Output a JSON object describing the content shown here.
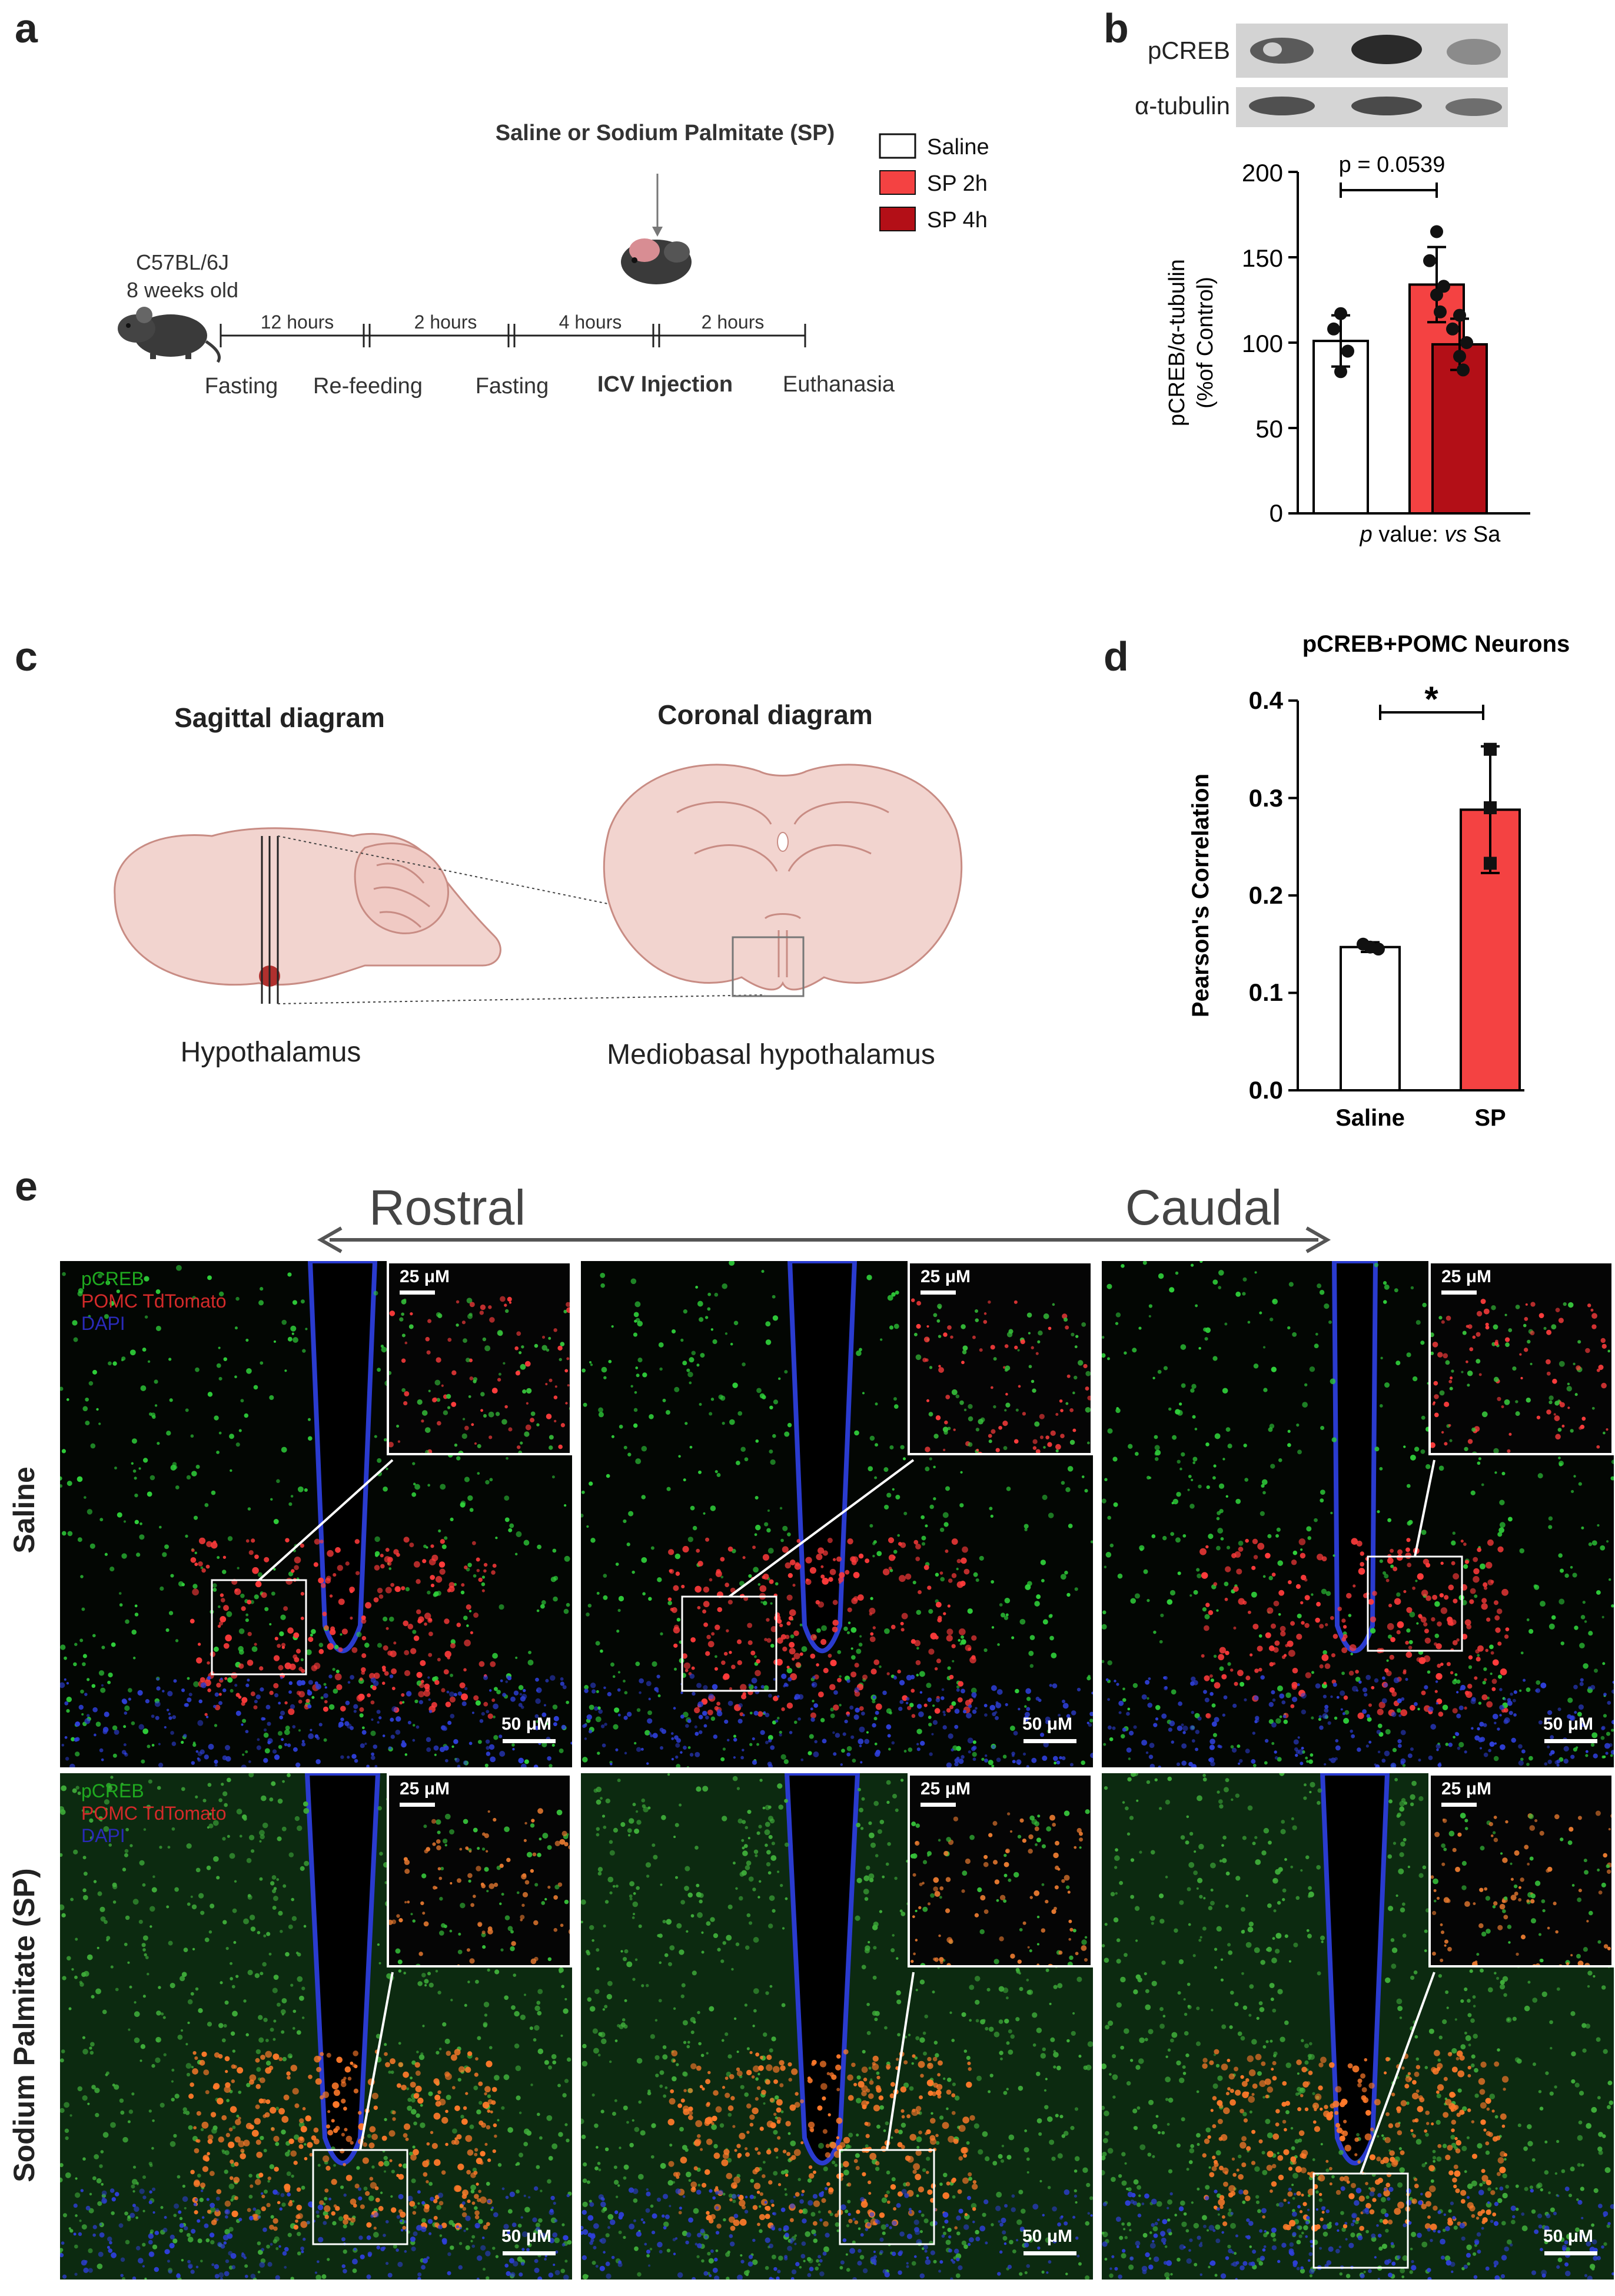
{
  "panels": {
    "a": "a",
    "b": "b",
    "c": "c",
    "d": "d",
    "e": "e"
  },
  "panel_a": {
    "title": "Saline or Sodium Palmitate (SP)",
    "legend": [
      {
        "label": "Saline",
        "color": "#ffffff"
      },
      {
        "label": "SP 2h",
        "color": "#f44242"
      },
      {
        "label": "SP 4h",
        "color": "#b30f17"
      }
    ],
    "mouse_strain": "C57BL/6J",
    "mouse_age": "8 weeks old",
    "intervals": [
      "12 hours",
      "2 hours",
      "4 hours",
      "2 hours"
    ],
    "steps": [
      "Fasting",
      "Re-feeding",
      "Fasting",
      "ICV Injection",
      "Euthanasia"
    ]
  },
  "panel_b": {
    "blot_labels": [
      "pCREB",
      "α-tubulin"
    ],
    "ylabel_line1": "pCREB/α-tubulin",
    "ylabel_line2": "(%of Control)",
    "yticks": [
      "200",
      "150",
      "100",
      "50",
      "0"
    ],
    "annotation": "p = 0.0539",
    "footnote_italic": "p",
    "footnote_mid": " value: ",
    "footnote_vs": "vs",
    "footnote_end": " Sa"
  },
  "panel_c": {
    "sagittal_title": "Sagittal diagram",
    "coronal_title": "Coronal diagram",
    "sagittal_caption": "Hypothalamus",
    "coronal_caption": "Mediobasal hypothalamus"
  },
  "panel_d": {
    "title": "pCREB+POMC Neurons",
    "ylabel": "Pearson's Correlation",
    "yticks": [
      "0.4",
      "0.3",
      "0.2",
      "0.1",
      "0.0"
    ],
    "categories": [
      "Saline",
      "SP"
    ],
    "significance": "*"
  },
  "panel_e": {
    "rostral": "Rostral",
    "caudal": "Caudal",
    "row_labels": [
      "Saline",
      "Sodium Palmitate (SP)"
    ],
    "channels": [
      {
        "label": "pCREB",
        "color": "#1fa91f"
      },
      {
        "label": "POMC TdTomato",
        "color": "#d42a2a"
      },
      {
        "label": "DAPI",
        "color": "#2a2ab8"
      }
    ],
    "scale_main": "50 μM",
    "scale_inset": "25 μM"
  },
  "chart_data": [
    {
      "type": "bar",
      "panel": "b",
      "categories": [
        "Saline",
        "SP 2h",
        "SP 4h"
      ],
      "values": [
        101,
        134,
        99
      ],
      "error": [
        15,
        22,
        15
      ],
      "points": [
        [
          117,
          108,
          95,
          83
        ],
        [
          165,
          148,
          133,
          128,
          118
        ],
        [
          116,
          108,
          100,
          92,
          84
        ]
      ],
      "colors": [
        "#ffffff",
        "#f44242",
        "#b30f17"
      ],
      "ylabel": "pCREB/α-tubulin (%of Control)",
      "ylim": [
        0,
        200
      ],
      "annotation": "p = 0.0539"
    },
    {
      "type": "bar",
      "panel": "d",
      "title": "pCREB+POMC Neurons",
      "categories": [
        "Saline",
        "SP"
      ],
      "values": [
        0.147,
        0.288
      ],
      "error": [
        0.005,
        0.065
      ],
      "points": [
        [
          0.15,
          0.147,
          0.145
        ],
        [
          0.35,
          0.29,
          0.233
        ]
      ],
      "colors": [
        "#ffffff",
        "#f44242"
      ],
      "ylabel": "Pearson's Correlation",
      "ylim": [
        0,
        0.4
      ],
      "significance": "*"
    }
  ]
}
